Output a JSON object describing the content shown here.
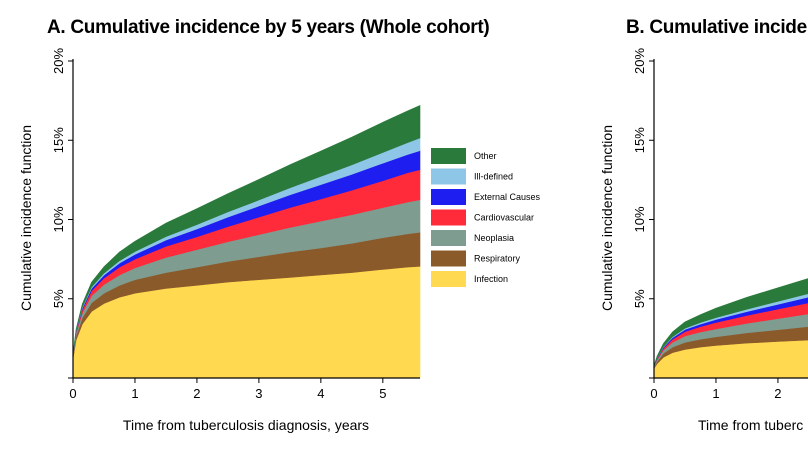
{
  "chart_data": [
    {
      "type": "area",
      "stacked": true,
      "title": "A. Cumulative incidence by 5 years (Whole cohort)",
      "xlabel": "Time from tuberculosis diagnosis, years",
      "ylabel": "Cumulative incidence function",
      "xlim": [
        0,
        5.6
      ],
      "ylim": [
        0,
        20
      ],
      "xticks": [
        0,
        1,
        2,
        3,
        4,
        5
      ],
      "yticks": [
        5,
        10,
        15,
        20
      ],
      "ytick_labels": [
        "5%",
        "10%",
        "15%",
        "20%"
      ],
      "grid": false,
      "legend_position": "right",
      "x": [
        0,
        0.05,
        0.15,
        0.3,
        0.5,
        0.75,
        1,
        1.5,
        2,
        2.5,
        3,
        3.5,
        4,
        4.5,
        5,
        5.4,
        5.6
      ],
      "series": [
        {
          "name": "Infection",
          "color": "#FFD94F",
          "values": [
            1.2,
            2.4,
            3.4,
            4.2,
            4.7,
            5.1,
            5.35,
            5.65,
            5.85,
            6.05,
            6.2,
            6.35,
            6.5,
            6.65,
            6.85,
            7.0,
            7.05
          ]
        },
        {
          "name": "Respiratory",
          "color": "#8B5A2B",
          "values": [
            0.1,
            0.25,
            0.4,
            0.55,
            0.65,
            0.75,
            0.85,
            1.0,
            1.15,
            1.3,
            1.45,
            1.6,
            1.7,
            1.85,
            2.0,
            2.1,
            2.15
          ]
        },
        {
          "name": "Neoplasia",
          "color": "#7F9C90",
          "values": [
            0.05,
            0.15,
            0.3,
            0.45,
            0.55,
            0.65,
            0.75,
            0.95,
            1.1,
            1.25,
            1.4,
            1.55,
            1.7,
            1.8,
            1.9,
            2.0,
            2.05
          ]
        },
        {
          "name": "Cardiovascular",
          "color": "#FF2A3A",
          "values": [
            0.05,
            0.1,
            0.2,
            0.3,
            0.4,
            0.5,
            0.55,
            0.7,
            0.8,
            0.95,
            1.1,
            1.25,
            1.4,
            1.55,
            1.7,
            1.85,
            1.9
          ]
        },
        {
          "name": "External Causes",
          "color": "#1E1EF0",
          "values": [
            0.02,
            0.05,
            0.1,
            0.15,
            0.2,
            0.25,
            0.3,
            0.4,
            0.5,
            0.6,
            0.7,
            0.8,
            0.9,
            1.0,
            1.1,
            1.15,
            1.2
          ]
        },
        {
          "name": "Ill-defined",
          "color": "#8EC6E8",
          "values": [
            0.02,
            0.04,
            0.07,
            0.1,
            0.12,
            0.15,
            0.18,
            0.22,
            0.28,
            0.33,
            0.38,
            0.45,
            0.52,
            0.6,
            0.68,
            0.75,
            0.8
          ]
        },
        {
          "name": "Other",
          "color": "#2A7A3B",
          "values": [
            0.05,
            0.1,
            0.2,
            0.3,
            0.4,
            0.55,
            0.65,
            0.85,
            1.0,
            1.15,
            1.3,
            1.45,
            1.6,
            1.75,
            1.9,
            2.0,
            2.05
          ]
        }
      ]
    },
    {
      "type": "area",
      "stacked": true,
      "title": "B. Cumulative incide",
      "xlabel": "Time from tuberc",
      "ylabel": "Cumulative incidence function",
      "xlim": [
        0,
        5.6
      ],
      "ylim": [
        0,
        20
      ],
      "xticks": [
        0,
        1,
        2
      ],
      "yticks": [
        5,
        10,
        15,
        20
      ],
      "ytick_labels": [
        "5%",
        "10%",
        "15%",
        "20%"
      ],
      "grid": false,
      "x": [
        0,
        0.05,
        0.15,
        0.3,
        0.5,
        0.75,
        1,
        1.5,
        2,
        2.5,
        3
      ],
      "series": [
        {
          "name": "Infection",
          "color": "#FFD94F",
          "values": [
            0.6,
            0.9,
            1.3,
            1.6,
            1.8,
            1.95,
            2.05,
            2.2,
            2.3,
            2.4,
            2.45
          ]
        },
        {
          "name": "Respiratory",
          "color": "#8B5A2B",
          "values": [
            0.05,
            0.15,
            0.25,
            0.35,
            0.45,
            0.5,
            0.55,
            0.65,
            0.75,
            0.85,
            0.9
          ]
        },
        {
          "name": "Neoplasia",
          "color": "#7F9C90",
          "values": [
            0.05,
            0.1,
            0.2,
            0.3,
            0.4,
            0.45,
            0.5,
            0.6,
            0.7,
            0.8,
            0.9
          ]
        },
        {
          "name": "Cardiovascular",
          "color": "#FF2A3A",
          "values": [
            0.02,
            0.06,
            0.12,
            0.2,
            0.28,
            0.34,
            0.4,
            0.5,
            0.6,
            0.7,
            0.8
          ]
        },
        {
          "name": "External Causes",
          "color": "#1E1EF0",
          "values": [
            0.01,
            0.03,
            0.06,
            0.1,
            0.13,
            0.16,
            0.19,
            0.24,
            0.3,
            0.36,
            0.42
          ]
        },
        {
          "name": "Ill-defined",
          "color": "#8EC6E8",
          "values": [
            0.01,
            0.02,
            0.04,
            0.06,
            0.08,
            0.1,
            0.12,
            0.15,
            0.19,
            0.23,
            0.27
          ]
        },
        {
          "name": "Other",
          "color": "#2A7A3B",
          "values": [
            0.05,
            0.12,
            0.2,
            0.3,
            0.4,
            0.5,
            0.6,
            0.75,
            0.85,
            0.95,
            1.05
          ]
        }
      ]
    }
  ],
  "legend": {
    "items": [
      {
        "label": "Other",
        "color": "#2A7A3B"
      },
      {
        "label": "Ill-defined",
        "color": "#8EC6E8"
      },
      {
        "label": "External Causes",
        "color": "#1E1EF0"
      },
      {
        "label": "Cardiovascular",
        "color": "#FF2A3A"
      },
      {
        "label": "Neoplasia",
        "color": "#7F9C90"
      },
      {
        "label": "Respiratory",
        "color": "#8B5A2B"
      },
      {
        "label": "Infection",
        "color": "#FFD94F"
      }
    ]
  }
}
